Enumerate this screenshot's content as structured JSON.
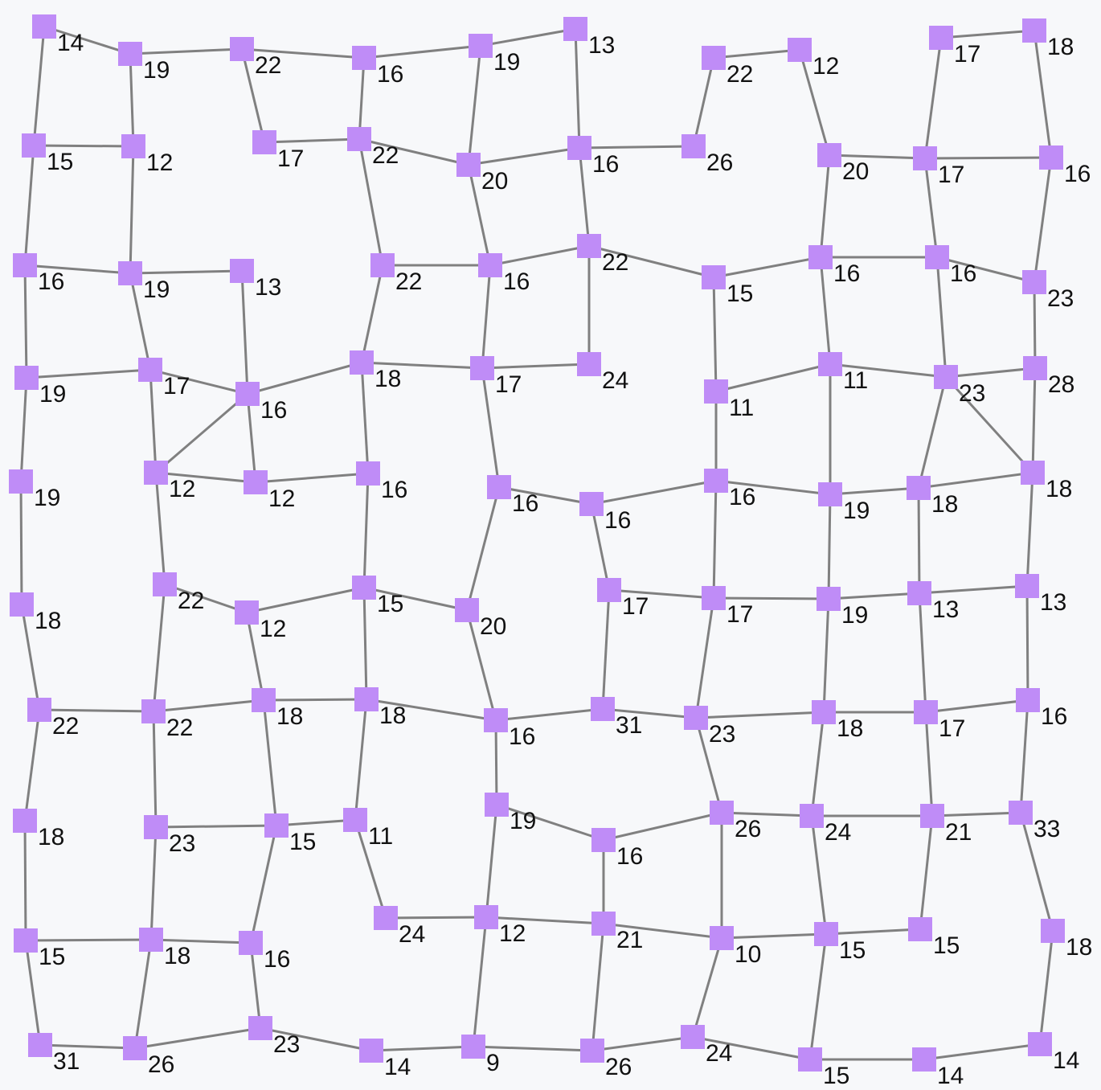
{
  "graph": {
    "colors": {
      "node": "#bf8cf7",
      "edge": "#808080",
      "label": "#111111",
      "background": "#f7f8fa"
    },
    "nodes": [
      {
        "id": "a1",
        "label": "14"
      },
      {
        "id": "a2",
        "label": "19"
      },
      {
        "id": "a3",
        "label": "22"
      },
      {
        "id": "a4",
        "label": "16"
      },
      {
        "id": "a5",
        "label": "19"
      },
      {
        "id": "a6",
        "label": "13"
      },
      {
        "id": "a7",
        "label": "22"
      },
      {
        "id": "a8",
        "label": "12"
      },
      {
        "id": "a9",
        "label": "17"
      },
      {
        "id": "a10",
        "label": "18"
      },
      {
        "id": "b1",
        "label": "15"
      },
      {
        "id": "b2",
        "label": "12"
      },
      {
        "id": "b3",
        "label": "17"
      },
      {
        "id": "b4",
        "label": "22"
      },
      {
        "id": "b5",
        "label": "20"
      },
      {
        "id": "b6",
        "label": "16"
      },
      {
        "id": "b7",
        "label": "26"
      },
      {
        "id": "b8",
        "label": "20"
      },
      {
        "id": "b9",
        "label": "17"
      },
      {
        "id": "b10",
        "label": "16"
      },
      {
        "id": "c1",
        "label": "16"
      },
      {
        "id": "c2",
        "label": "19"
      },
      {
        "id": "c3",
        "label": "13"
      },
      {
        "id": "c4",
        "label": "22"
      },
      {
        "id": "c5",
        "label": "16"
      },
      {
        "id": "c6",
        "label": "22"
      },
      {
        "id": "c7",
        "label": "15"
      },
      {
        "id": "c8",
        "label": "16"
      },
      {
        "id": "c9",
        "label": "16"
      },
      {
        "id": "c10",
        "label": "23"
      },
      {
        "id": "d1",
        "label": "19"
      },
      {
        "id": "d2",
        "label": "17"
      },
      {
        "id": "d3",
        "label": "16"
      },
      {
        "id": "d4",
        "label": "18"
      },
      {
        "id": "d5",
        "label": "17"
      },
      {
        "id": "d6",
        "label": "24"
      },
      {
        "id": "d7",
        "label": "11"
      },
      {
        "id": "d8",
        "label": "11"
      },
      {
        "id": "d9",
        "label": "23"
      },
      {
        "id": "d10",
        "label": "28"
      },
      {
        "id": "e1",
        "label": "19"
      },
      {
        "id": "e2",
        "label": "12"
      },
      {
        "id": "e3",
        "label": "12"
      },
      {
        "id": "e4",
        "label": "16"
      },
      {
        "id": "e5",
        "label": "16"
      },
      {
        "id": "e6",
        "label": "16"
      },
      {
        "id": "e7",
        "label": "16"
      },
      {
        "id": "e8",
        "label": "19"
      },
      {
        "id": "e9",
        "label": "18"
      },
      {
        "id": "e10",
        "label": "18"
      },
      {
        "id": "f1",
        "label": "18"
      },
      {
        "id": "f2",
        "label": "22"
      },
      {
        "id": "f3",
        "label": "12"
      },
      {
        "id": "f4",
        "label": "15"
      },
      {
        "id": "f5",
        "label": "20"
      },
      {
        "id": "f6",
        "label": "17"
      },
      {
        "id": "f7",
        "label": "17"
      },
      {
        "id": "f8",
        "label": "19"
      },
      {
        "id": "f9",
        "label": "13"
      },
      {
        "id": "f10",
        "label": "13"
      },
      {
        "id": "g1",
        "label": "22"
      },
      {
        "id": "g2",
        "label": "22"
      },
      {
        "id": "g3",
        "label": "18"
      },
      {
        "id": "g4",
        "label": "18"
      },
      {
        "id": "g5",
        "label": "16"
      },
      {
        "id": "g6",
        "label": "31"
      },
      {
        "id": "g7",
        "label": "23"
      },
      {
        "id": "g8",
        "label": "18"
      },
      {
        "id": "g9",
        "label": "17"
      },
      {
        "id": "g10",
        "label": "16"
      },
      {
        "id": "h1",
        "label": "18"
      },
      {
        "id": "h2",
        "label": "23"
      },
      {
        "id": "h3",
        "label": "15"
      },
      {
        "id": "h4",
        "label": "11"
      },
      {
        "id": "h5",
        "label": "19"
      },
      {
        "id": "h6",
        "label": "16"
      },
      {
        "id": "h7",
        "label": "26"
      },
      {
        "id": "h8",
        "label": "24"
      },
      {
        "id": "h9",
        "label": "21"
      },
      {
        "id": "h10",
        "label": "33"
      },
      {
        "id": "i1",
        "label": "15"
      },
      {
        "id": "i2",
        "label": "18"
      },
      {
        "id": "i3",
        "label": "16"
      },
      {
        "id": "i4",
        "label": "24"
      },
      {
        "id": "i5",
        "label": "12"
      },
      {
        "id": "i6",
        "label": "21"
      },
      {
        "id": "i7",
        "label": "10"
      },
      {
        "id": "i8",
        "label": "15"
      },
      {
        "id": "i9",
        "label": "15"
      },
      {
        "id": "i10",
        "label": "18"
      },
      {
        "id": "j1",
        "label": "31"
      },
      {
        "id": "j2",
        "label": "26"
      },
      {
        "id": "j3",
        "label": "23"
      },
      {
        "id": "j4",
        "label": "14"
      },
      {
        "id": "j5",
        "label": "9"
      },
      {
        "id": "j6",
        "label": "26"
      },
      {
        "id": "j7",
        "label": "24"
      },
      {
        "id": "j8",
        "label": "15"
      },
      {
        "id": "j9",
        "label": "14"
      },
      {
        "id": "j10",
        "label": "14"
      }
    ],
    "edges": [
      [
        "a1",
        "a2"
      ],
      [
        "a2",
        "a3"
      ],
      [
        "a3",
        "a4"
      ],
      [
        "a4",
        "a5"
      ],
      [
        "a5",
        "a6"
      ],
      [
        "a7",
        "a8"
      ],
      [
        "a9",
        "a10"
      ],
      [
        "a1",
        "b1"
      ],
      [
        "a2",
        "b2"
      ],
      [
        "a3",
        "b3"
      ],
      [
        "a4",
        "b4"
      ],
      [
        "a5",
        "b5"
      ],
      [
        "a6",
        "b6"
      ],
      [
        "a7",
        "b7"
      ],
      [
        "a8",
        "b8"
      ],
      [
        "a9",
        "b9"
      ],
      [
        "a10",
        "b10"
      ],
      [
        "b1",
        "b2"
      ],
      [
        "b3",
        "b4"
      ],
      [
        "b4",
        "b5"
      ],
      [
        "b5",
        "b6"
      ],
      [
        "b6",
        "b7"
      ],
      [
        "b8",
        "b9"
      ],
      [
        "b9",
        "b10"
      ],
      [
        "b1",
        "c1"
      ],
      [
        "b2",
        "c2"
      ],
      [
        "b4",
        "c4"
      ],
      [
        "b5",
        "c5"
      ],
      [
        "b6",
        "c6"
      ],
      [
        "b8",
        "c8"
      ],
      [
        "b9",
        "c9"
      ],
      [
        "b10",
        "c10"
      ],
      [
        "c1",
        "c2"
      ],
      [
        "c2",
        "c3"
      ],
      [
        "c4",
        "c5"
      ],
      [
        "c5",
        "c6"
      ],
      [
        "c6",
        "c7"
      ],
      [
        "c7",
        "c8"
      ],
      [
        "c8",
        "c9"
      ],
      [
        "c9",
        "c10"
      ],
      [
        "c1",
        "d1"
      ],
      [
        "c2",
        "d2"
      ],
      [
        "c3",
        "d3"
      ],
      [
        "c4",
        "d4"
      ],
      [
        "c5",
        "d5"
      ],
      [
        "c6",
        "d6"
      ],
      [
        "c7",
        "d7"
      ],
      [
        "c8",
        "d8"
      ],
      [
        "c9",
        "d9"
      ],
      [
        "c10",
        "d10"
      ],
      [
        "d1",
        "d2"
      ],
      [
        "d2",
        "d3"
      ],
      [
        "d3",
        "d4"
      ],
      [
        "d4",
        "d5"
      ],
      [
        "d5",
        "d6"
      ],
      [
        "d7",
        "d8"
      ],
      [
        "d8",
        "d9"
      ],
      [
        "d9",
        "d10"
      ],
      [
        "d3",
        "e2"
      ],
      [
        "d9",
        "e10"
      ],
      [
        "d1",
        "e1"
      ],
      [
        "d2",
        "e2"
      ],
      [
        "d3",
        "e3"
      ],
      [
        "d4",
        "e4"
      ],
      [
        "d5",
        "e5"
      ],
      [
        "d7",
        "e7"
      ],
      [
        "d8",
        "e8"
      ],
      [
        "d9",
        "e9"
      ],
      [
        "d10",
        "e10"
      ],
      [
        "e2",
        "e3"
      ],
      [
        "e3",
        "e4"
      ],
      [
        "e5",
        "e6"
      ],
      [
        "e6",
        "e7"
      ],
      [
        "e7",
        "e8"
      ],
      [
        "e8",
        "e9"
      ],
      [
        "e9",
        "e10"
      ],
      [
        "e1",
        "f1"
      ],
      [
        "e2",
        "f2"
      ],
      [
        "e4",
        "f4"
      ],
      [
        "e5",
        "f5"
      ],
      [
        "e6",
        "f6"
      ],
      [
        "e7",
        "f7"
      ],
      [
        "e8",
        "f8"
      ],
      [
        "e9",
        "f9"
      ],
      [
        "e10",
        "f10"
      ],
      [
        "f2",
        "f3"
      ],
      [
        "f3",
        "f4"
      ],
      [
        "f4",
        "f5"
      ],
      [
        "f6",
        "f7"
      ],
      [
        "f7",
        "f8"
      ],
      [
        "f8",
        "f9"
      ],
      [
        "f9",
        "f10"
      ],
      [
        "f1",
        "g1"
      ],
      [
        "f2",
        "g2"
      ],
      [
        "f3",
        "g3"
      ],
      [
        "f4",
        "g4"
      ],
      [
        "f5",
        "g5"
      ],
      [
        "f6",
        "g6"
      ],
      [
        "f7",
        "g7"
      ],
      [
        "f8",
        "g8"
      ],
      [
        "f9",
        "g9"
      ],
      [
        "f10",
        "g10"
      ],
      [
        "g1",
        "g2"
      ],
      [
        "g2",
        "g3"
      ],
      [
        "g3",
        "g4"
      ],
      [
        "g4",
        "g5"
      ],
      [
        "g5",
        "g6"
      ],
      [
        "g6",
        "g7"
      ],
      [
        "g7",
        "g8"
      ],
      [
        "g8",
        "g9"
      ],
      [
        "g9",
        "g10"
      ],
      [
        "g1",
        "h1"
      ],
      [
        "g2",
        "h2"
      ],
      [
        "g3",
        "h3"
      ],
      [
        "g4",
        "h4"
      ],
      [
        "g5",
        "h5"
      ],
      [
        "g7",
        "h7"
      ],
      [
        "g8",
        "h8"
      ],
      [
        "g9",
        "h9"
      ],
      [
        "g10",
        "h10"
      ],
      [
        "h2",
        "h3"
      ],
      [
        "h3",
        "h4"
      ],
      [
        "h5",
        "h6"
      ],
      [
        "h6",
        "h7"
      ],
      [
        "h7",
        "h8"
      ],
      [
        "h8",
        "h9"
      ],
      [
        "h9",
        "h10"
      ],
      [
        "h1",
        "i1"
      ],
      [
        "h2",
        "i2"
      ],
      [
        "h3",
        "i3"
      ],
      [
        "h4",
        "i4"
      ],
      [
        "h5",
        "i5"
      ],
      [
        "h6",
        "i6"
      ],
      [
        "h7",
        "i7"
      ],
      [
        "h8",
        "i8"
      ],
      [
        "h9",
        "i9"
      ],
      [
        "h10",
        "i10"
      ],
      [
        "i1",
        "i2"
      ],
      [
        "i2",
        "i3"
      ],
      [
        "i4",
        "i5"
      ],
      [
        "i5",
        "i6"
      ],
      [
        "i6",
        "i7"
      ],
      [
        "i7",
        "i8"
      ],
      [
        "i8",
        "i9"
      ],
      [
        "i1",
        "j1"
      ],
      [
        "i2",
        "j2"
      ],
      [
        "i3",
        "j3"
      ],
      [
        "i5",
        "j5"
      ],
      [
        "i6",
        "j6"
      ],
      [
        "i7",
        "j7"
      ],
      [
        "i8",
        "j8"
      ],
      [
        "i10",
        "j10"
      ],
      [
        "j1",
        "j2"
      ],
      [
        "j2",
        "j3"
      ],
      [
        "j3",
        "j4"
      ],
      [
        "j4",
        "j5"
      ],
      [
        "j5",
        "j6"
      ],
      [
        "j6",
        "j7"
      ],
      [
        "j7",
        "j8"
      ],
      [
        "j8",
        "j9"
      ],
      [
        "j9",
        "j10"
      ]
    ]
  }
}
